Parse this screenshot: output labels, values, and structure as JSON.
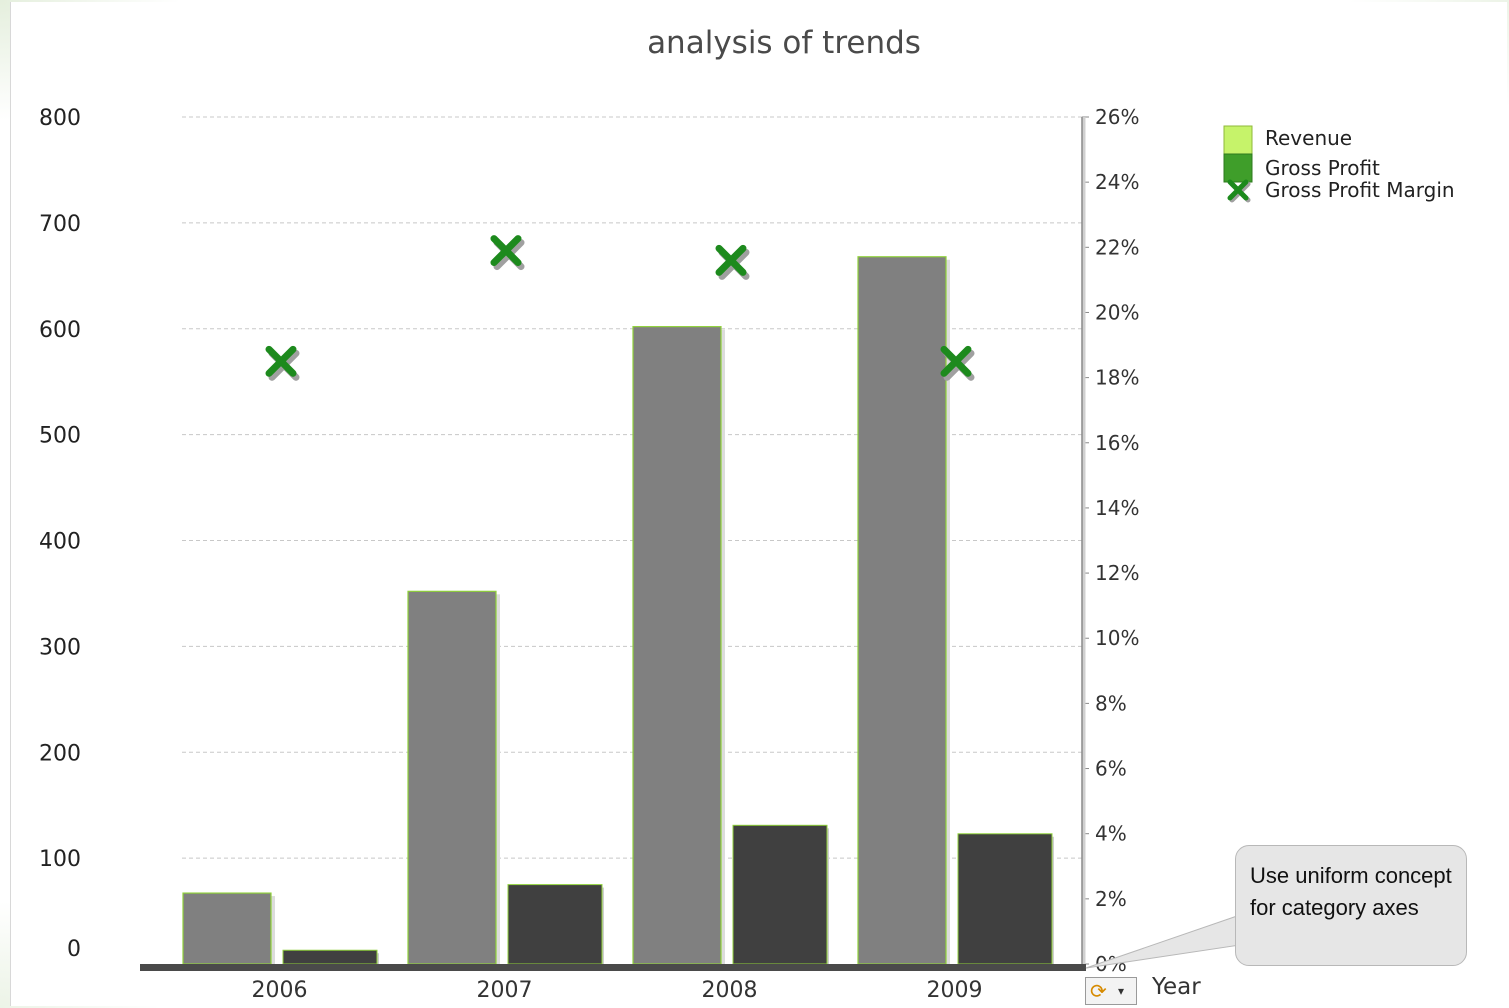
{
  "chart_data": {
    "type": "bar",
    "title": "analysis of trends",
    "categories": [
      "2006",
      "2007",
      "2008",
      "2009"
    ],
    "series": [
      {
        "name": "Revenue",
        "axis": "left",
        "kind": "bar",
        "values": [
          67,
          352,
          602,
          668
        ]
      },
      {
        "name": "Gross Profit",
        "axis": "left",
        "kind": "bar",
        "values": [
          13,
          75,
          131,
          123
        ]
      },
      {
        "name": "Gross Profit Margin",
        "axis": "right",
        "kind": "scatter",
        "values": [
          18.5,
          21.9,
          21.6,
          18.5
        ]
      }
    ],
    "left_axis": {
      "ticks": [
        "0",
        "100",
        "200",
        "300",
        "400",
        "500",
        "600",
        "700",
        "800"
      ],
      "range": [
        0,
        800
      ]
    },
    "right_axis": {
      "ticks": [
        "0%",
        "2%",
        "4%",
        "6%",
        "8%",
        "10%",
        "12%",
        "14%",
        "16%",
        "18%",
        "20%",
        "22%",
        "24%",
        "26%"
      ],
      "range": [
        0,
        26
      ]
    },
    "xlabel": "Year",
    "grid": true,
    "legend_position": "top-right"
  },
  "colors": {
    "revenue_bar": "#808080",
    "gross_profit_bar": "#404040",
    "revenue_legend": "#c6f36a",
    "gross_profit_legend": "#3f9e2a",
    "margin_marker": "#1d8a1d",
    "bar_edge": "#8fd13a"
  },
  "legend": {
    "items": [
      {
        "label": "Revenue",
        "icon": "light-green-swatch"
      },
      {
        "label": "Gross Profit",
        "icon": "dark-green-swatch"
      },
      {
        "label": "Gross Profit Margin",
        "icon": "green-x-marker"
      }
    ]
  },
  "callout": {
    "text": "Use uniform concept for category axes"
  },
  "axis_toggle": {
    "icon": "refresh-icon",
    "chevron": "chevron-down-icon"
  }
}
